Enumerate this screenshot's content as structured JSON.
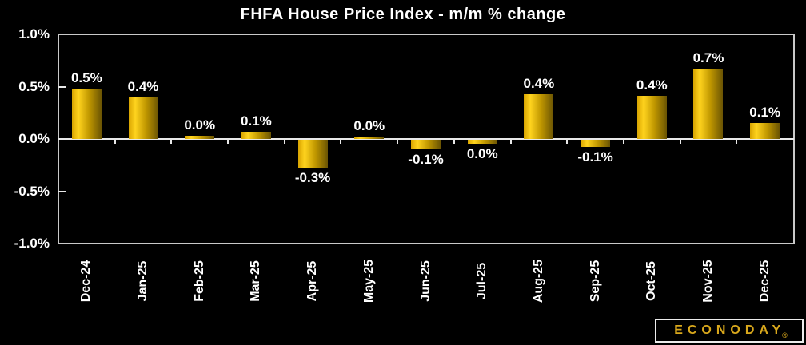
{
  "chart_data": {
    "type": "bar",
    "title": "FHFA House Price Index - m/m % change",
    "categories": [
      "Dec-24",
      "Jan-25",
      "Feb-25",
      "Mar-25",
      "Apr-25",
      "May-25",
      "Jun-25",
      "Jul-25",
      "Aug-25",
      "Sep-25",
      "Oct-25",
      "Nov-25",
      "Dec-25"
    ],
    "values": [
      0.48,
      0.4,
      0.03,
      0.07,
      -0.27,
      0.02,
      -0.09,
      -0.04,
      0.43,
      -0.07,
      0.41,
      0.67,
      0.15
    ],
    "bar_labels": [
      "0.5%",
      "0.4%",
      "0.0%",
      "0.1%",
      "-0.3%",
      "0.0%",
      "-0.1%",
      "0.0%",
      "0.4%",
      "-0.1%",
      "0.4%",
      "0.7%",
      "0.1%"
    ],
    "xlabel": "",
    "ylabel": "",
    "ylim": [
      -1.0,
      1.0
    ],
    "ytick_labels": [
      "1.0%",
      "0.5%",
      "0.0%",
      "-0.5%",
      "-1.0%"
    ],
    "ytick_values": [
      1.0,
      0.5,
      0.0,
      -0.5,
      -1.0
    ],
    "grid": false,
    "legend": "none",
    "zero_baseline": true
  },
  "colors": {
    "background": "#000000",
    "text": "#ffffff",
    "axis_border": "#c9c9c9",
    "zero_line": "#e8e8e8",
    "bar_gradient": [
      "#d8a400",
      "#ffd31e",
      "#c09700",
      "#6a5403"
    ],
    "logo_gold": "#d9a81c",
    "logo_border": "#ececec"
  },
  "branding": {
    "logo_text": "ECONODAY",
    "registered_mark": "®"
  }
}
